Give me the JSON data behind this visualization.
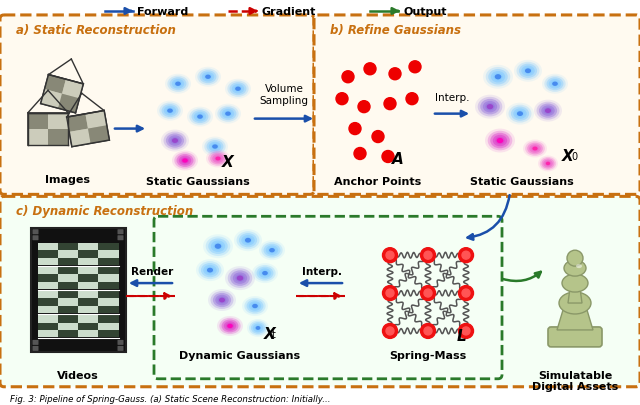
{
  "background_color": "#ffffff",
  "box_color": "#c87010",
  "box_a_bg": "#fffaf0",
  "box_b_bg": "#fffaf0",
  "box_c_bg": "#f5fff5",
  "box_inner_color": "#2a7a2a",
  "blue_arrow": "#1a4faa",
  "red_arrow": "#cc0000",
  "green_arrow": "#2a7a2a",
  "box_a_title": "a) Static Reconstruction",
  "box_b_title": "b) Refine Gaussians",
  "box_c_title": "c) Dynamic Reconstruction",
  "legend_forward": "Forward",
  "legend_gradient": "Gradient",
  "legend_output": "Output",
  "label_images": "Images",
  "label_static_gaussians_a": "Static Gaussians",
  "label_x": "X",
  "label_volume_sampling": "Volume\nSampling",
  "label_anchor_points": "Anchor Points",
  "label_a": "A",
  "label_interp_b": "Interp.",
  "label_static_gaussians_b": "Static Gaussians",
  "label_x0": "X",
  "label_videos": "Videos",
  "label_render": "Render",
  "label_interp_c": "Interp.",
  "label_dynamic_gaussians": "Dynamic Gaussians",
  "label_xt": "X",
  "label_spring_mass": "Spring-Mass",
  "label_l": "L",
  "label_simulatable": "Simulatable\nDigital Assets",
  "caption": "Fig. 3: Pipeline of Spring-Gauss. (a) Static Scene Reconstruction: Initially..."
}
